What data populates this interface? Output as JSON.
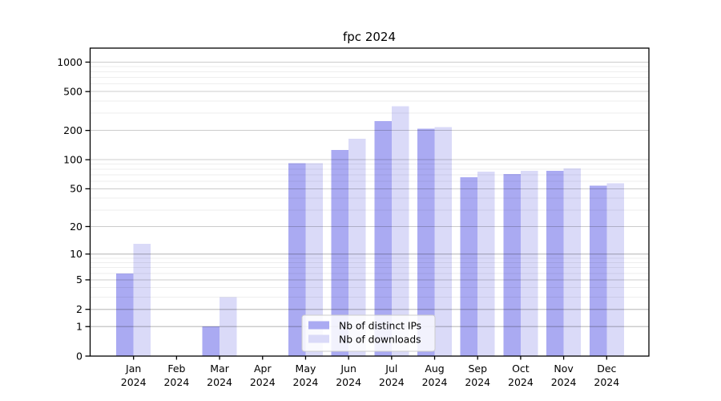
{
  "chart_data": {
    "type": "bar",
    "title": "fpc 2024",
    "categories": [
      {
        "month": "Jan",
        "year": "2024"
      },
      {
        "month": "Feb",
        "year": "2024"
      },
      {
        "month": "Mar",
        "year": "2024"
      },
      {
        "month": "Apr",
        "year": "2024"
      },
      {
        "month": "May",
        "year": "2024"
      },
      {
        "month": "Jun",
        "year": "2024"
      },
      {
        "month": "Jul",
        "year": "2024"
      },
      {
        "month": "Aug",
        "year": "2024"
      },
      {
        "month": "Sep",
        "year": "2024"
      },
      {
        "month": "Oct",
        "year": "2024"
      },
      {
        "month": "Nov",
        "year": "2024"
      },
      {
        "month": "Dec",
        "year": "2024"
      }
    ],
    "series": [
      {
        "name": "Nb of distinct IPs",
        "color": "#aaaaf2",
        "values": [
          6,
          0,
          1,
          0,
          92,
          126,
          250,
          208,
          66,
          71,
          77,
          54
        ]
      },
      {
        "name": "Nb of downloads",
        "color": "#dadaf8",
        "values": [
          13,
          0,
          3,
          0,
          92,
          164,
          355,
          216,
          75,
          77,
          81,
          57
        ]
      }
    ],
    "y_axis": {
      "scale": "log1p",
      "ticks": [
        0,
        1,
        2,
        5,
        10,
        20,
        50,
        100,
        200,
        500,
        1000
      ],
      "minor_ticks": [
        3,
        4,
        6,
        7,
        8,
        9,
        30,
        40,
        60,
        70,
        80,
        90,
        300,
        400,
        600,
        700,
        800,
        900
      ],
      "ylim": [
        0,
        1390
      ]
    },
    "legend": {
      "position": "lower center",
      "entries": [
        "Nb of distinct IPs",
        "Nb of downloads"
      ]
    },
    "grid": true,
    "style": {
      "axis_color": "#000000",
      "major_grid_color": "rgba(0,0,0,0.20)",
      "minor_grid_color": "rgba(0,0,0,0.065)",
      "legend_border_color": "#cccccc",
      "legend_bg_color": "rgba(255,255,255,0.85)",
      "background": "#ffffff"
    }
  }
}
